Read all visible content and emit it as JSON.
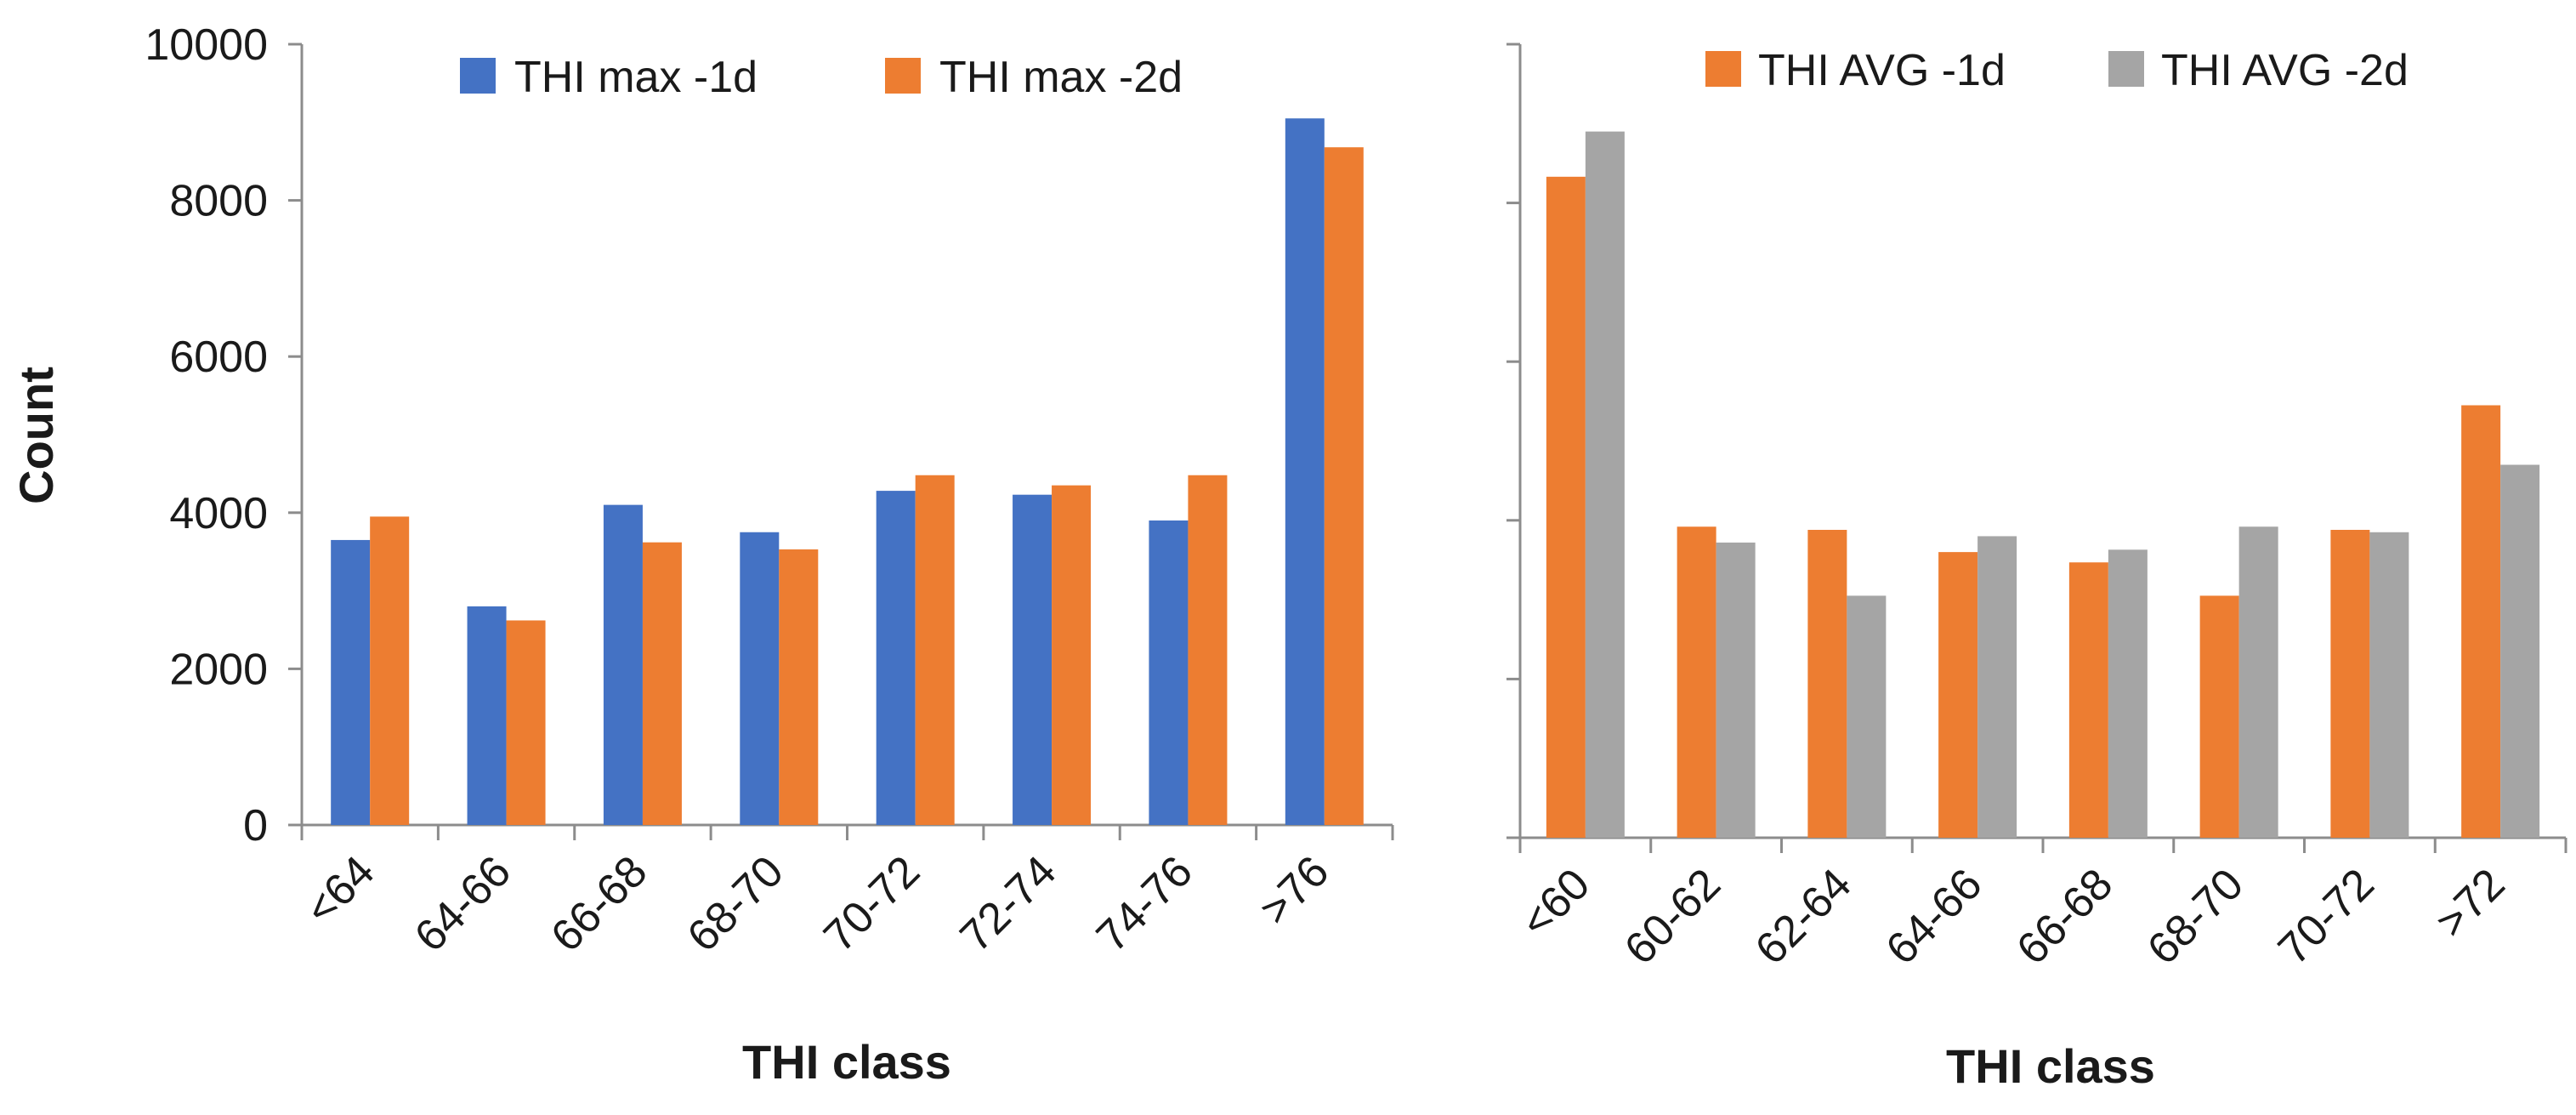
{
  "chart_data": [
    {
      "type": "bar",
      "title": "",
      "xlabel": "THI class",
      "ylabel": "Count",
      "ylim": [
        0,
        10000
      ],
      "yticks": [
        "0",
        "2000",
        "4000",
        "6000",
        "8000",
        "10000"
      ],
      "show_ytick_labels": true,
      "categories": [
        "<64",
        "64-66",
        "66-68",
        "68-70",
        "70-72",
        "72-74",
        "74-76",
        ">76"
      ],
      "series": [
        {
          "name": "THI max -1d",
          "color": "#4472C4",
          "values": [
            3650,
            2800,
            4100,
            3750,
            4280,
            4230,
            3900,
            9050
          ]
        },
        {
          "name": "THI max -2d",
          "color": "#ED7D31",
          "values": [
            3950,
            2620,
            3620,
            3530,
            4480,
            4350,
            4480,
            8680
          ]
        }
      ],
      "legend": "top"
    },
    {
      "type": "bar",
      "title": "",
      "xlabel": "THI class",
      "ylabel": "",
      "ylim": [
        0,
        10000
      ],
      "yticks": [
        "0",
        "2000",
        "4000",
        "6000",
        "8000",
        "10000"
      ],
      "show_ytick_labels": false,
      "categories": [
        "<60",
        "60-62",
        "62-64",
        "64-66",
        "66-68",
        "68-70",
        "70-72",
        ">72"
      ],
      "series": [
        {
          "name": "THI AVG -1d",
          "color": "#ED7D31",
          "values": [
            8330,
            3920,
            3880,
            3600,
            3470,
            3050,
            3880,
            5450
          ]
        },
        {
          "name": "THI AVG -2d",
          "color": "#A5A5A5",
          "values": [
            8900,
            3720,
            3050,
            3800,
            3630,
            3920,
            3850,
            4700
          ]
        }
      ],
      "legend": "top"
    }
  ]
}
